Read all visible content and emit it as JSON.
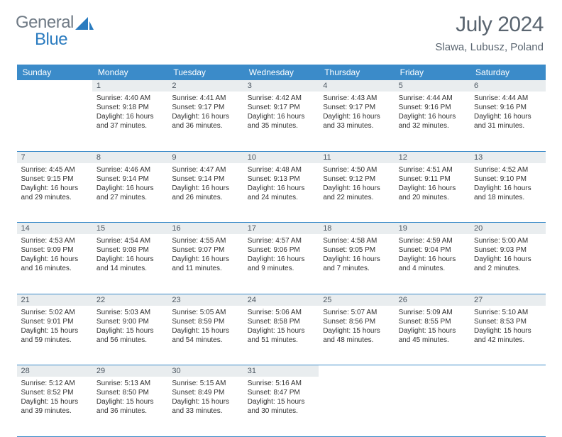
{
  "logo": {
    "part1": "General",
    "part2": "Blue"
  },
  "title": "July 2024",
  "location": "Slawa, Lubusz, Poland",
  "colors": {
    "header_bg": "#3b8bc9",
    "header_text": "#ffffff",
    "daynum_bg": "#e9edef",
    "daynum_text": "#4a5560",
    "body_text": "#303030",
    "title_text": "#5a6570",
    "row_border": "#3b8bc9",
    "logo_gray": "#6f7a85",
    "logo_blue": "#2a7bbf",
    "page_bg": "#ffffff"
  },
  "typography": {
    "title_fontsize": 30,
    "subtitle_fontsize": 15,
    "weekday_fontsize": 12,
    "daynum_fontsize": 11,
    "body_fontsize": 10,
    "font_family": "Arial"
  },
  "weekdays": [
    "Sunday",
    "Monday",
    "Tuesday",
    "Wednesday",
    "Thursday",
    "Friday",
    "Saturday"
  ],
  "weeks": [
    [
      {
        "day": "",
        "sunrise": "",
        "sunset": "",
        "daylight1": "",
        "daylight2": ""
      },
      {
        "day": "1",
        "sunrise": "Sunrise: 4:40 AM",
        "sunset": "Sunset: 9:18 PM",
        "daylight1": "Daylight: 16 hours",
        "daylight2": "and 37 minutes."
      },
      {
        "day": "2",
        "sunrise": "Sunrise: 4:41 AM",
        "sunset": "Sunset: 9:17 PM",
        "daylight1": "Daylight: 16 hours",
        "daylight2": "and 36 minutes."
      },
      {
        "day": "3",
        "sunrise": "Sunrise: 4:42 AM",
        "sunset": "Sunset: 9:17 PM",
        "daylight1": "Daylight: 16 hours",
        "daylight2": "and 35 minutes."
      },
      {
        "day": "4",
        "sunrise": "Sunrise: 4:43 AM",
        "sunset": "Sunset: 9:17 PM",
        "daylight1": "Daylight: 16 hours",
        "daylight2": "and 33 minutes."
      },
      {
        "day": "5",
        "sunrise": "Sunrise: 4:44 AM",
        "sunset": "Sunset: 9:16 PM",
        "daylight1": "Daylight: 16 hours",
        "daylight2": "and 32 minutes."
      },
      {
        "day": "6",
        "sunrise": "Sunrise: 4:44 AM",
        "sunset": "Sunset: 9:16 PM",
        "daylight1": "Daylight: 16 hours",
        "daylight2": "and 31 minutes."
      }
    ],
    [
      {
        "day": "7",
        "sunrise": "Sunrise: 4:45 AM",
        "sunset": "Sunset: 9:15 PM",
        "daylight1": "Daylight: 16 hours",
        "daylight2": "and 29 minutes."
      },
      {
        "day": "8",
        "sunrise": "Sunrise: 4:46 AM",
        "sunset": "Sunset: 9:14 PM",
        "daylight1": "Daylight: 16 hours",
        "daylight2": "and 27 minutes."
      },
      {
        "day": "9",
        "sunrise": "Sunrise: 4:47 AM",
        "sunset": "Sunset: 9:14 PM",
        "daylight1": "Daylight: 16 hours",
        "daylight2": "and 26 minutes."
      },
      {
        "day": "10",
        "sunrise": "Sunrise: 4:48 AM",
        "sunset": "Sunset: 9:13 PM",
        "daylight1": "Daylight: 16 hours",
        "daylight2": "and 24 minutes."
      },
      {
        "day": "11",
        "sunrise": "Sunrise: 4:50 AM",
        "sunset": "Sunset: 9:12 PM",
        "daylight1": "Daylight: 16 hours",
        "daylight2": "and 22 minutes."
      },
      {
        "day": "12",
        "sunrise": "Sunrise: 4:51 AM",
        "sunset": "Sunset: 9:11 PM",
        "daylight1": "Daylight: 16 hours",
        "daylight2": "and 20 minutes."
      },
      {
        "day": "13",
        "sunrise": "Sunrise: 4:52 AM",
        "sunset": "Sunset: 9:10 PM",
        "daylight1": "Daylight: 16 hours",
        "daylight2": "and 18 minutes."
      }
    ],
    [
      {
        "day": "14",
        "sunrise": "Sunrise: 4:53 AM",
        "sunset": "Sunset: 9:09 PM",
        "daylight1": "Daylight: 16 hours",
        "daylight2": "and 16 minutes."
      },
      {
        "day": "15",
        "sunrise": "Sunrise: 4:54 AM",
        "sunset": "Sunset: 9:08 PM",
        "daylight1": "Daylight: 16 hours",
        "daylight2": "and 14 minutes."
      },
      {
        "day": "16",
        "sunrise": "Sunrise: 4:55 AM",
        "sunset": "Sunset: 9:07 PM",
        "daylight1": "Daylight: 16 hours",
        "daylight2": "and 11 minutes."
      },
      {
        "day": "17",
        "sunrise": "Sunrise: 4:57 AM",
        "sunset": "Sunset: 9:06 PM",
        "daylight1": "Daylight: 16 hours",
        "daylight2": "and 9 minutes."
      },
      {
        "day": "18",
        "sunrise": "Sunrise: 4:58 AM",
        "sunset": "Sunset: 9:05 PM",
        "daylight1": "Daylight: 16 hours",
        "daylight2": "and 7 minutes."
      },
      {
        "day": "19",
        "sunrise": "Sunrise: 4:59 AM",
        "sunset": "Sunset: 9:04 PM",
        "daylight1": "Daylight: 16 hours",
        "daylight2": "and 4 minutes."
      },
      {
        "day": "20",
        "sunrise": "Sunrise: 5:00 AM",
        "sunset": "Sunset: 9:03 PM",
        "daylight1": "Daylight: 16 hours",
        "daylight2": "and 2 minutes."
      }
    ],
    [
      {
        "day": "21",
        "sunrise": "Sunrise: 5:02 AM",
        "sunset": "Sunset: 9:01 PM",
        "daylight1": "Daylight: 15 hours",
        "daylight2": "and 59 minutes."
      },
      {
        "day": "22",
        "sunrise": "Sunrise: 5:03 AM",
        "sunset": "Sunset: 9:00 PM",
        "daylight1": "Daylight: 15 hours",
        "daylight2": "and 56 minutes."
      },
      {
        "day": "23",
        "sunrise": "Sunrise: 5:05 AM",
        "sunset": "Sunset: 8:59 PM",
        "daylight1": "Daylight: 15 hours",
        "daylight2": "and 54 minutes."
      },
      {
        "day": "24",
        "sunrise": "Sunrise: 5:06 AM",
        "sunset": "Sunset: 8:58 PM",
        "daylight1": "Daylight: 15 hours",
        "daylight2": "and 51 minutes."
      },
      {
        "day": "25",
        "sunrise": "Sunrise: 5:07 AM",
        "sunset": "Sunset: 8:56 PM",
        "daylight1": "Daylight: 15 hours",
        "daylight2": "and 48 minutes."
      },
      {
        "day": "26",
        "sunrise": "Sunrise: 5:09 AM",
        "sunset": "Sunset: 8:55 PM",
        "daylight1": "Daylight: 15 hours",
        "daylight2": "and 45 minutes."
      },
      {
        "day": "27",
        "sunrise": "Sunrise: 5:10 AM",
        "sunset": "Sunset: 8:53 PM",
        "daylight1": "Daylight: 15 hours",
        "daylight2": "and 42 minutes."
      }
    ],
    [
      {
        "day": "28",
        "sunrise": "Sunrise: 5:12 AM",
        "sunset": "Sunset: 8:52 PM",
        "daylight1": "Daylight: 15 hours",
        "daylight2": "and 39 minutes."
      },
      {
        "day": "29",
        "sunrise": "Sunrise: 5:13 AM",
        "sunset": "Sunset: 8:50 PM",
        "daylight1": "Daylight: 15 hours",
        "daylight2": "and 36 minutes."
      },
      {
        "day": "30",
        "sunrise": "Sunrise: 5:15 AM",
        "sunset": "Sunset: 8:49 PM",
        "daylight1": "Daylight: 15 hours",
        "daylight2": "and 33 minutes."
      },
      {
        "day": "31",
        "sunrise": "Sunrise: 5:16 AM",
        "sunset": "Sunset: 8:47 PM",
        "daylight1": "Daylight: 15 hours",
        "daylight2": "and 30 minutes."
      },
      {
        "day": "",
        "sunrise": "",
        "sunset": "",
        "daylight1": "",
        "daylight2": ""
      },
      {
        "day": "",
        "sunrise": "",
        "sunset": "",
        "daylight1": "",
        "daylight2": ""
      },
      {
        "day": "",
        "sunrise": "",
        "sunset": "",
        "daylight1": "",
        "daylight2": ""
      }
    ]
  ]
}
